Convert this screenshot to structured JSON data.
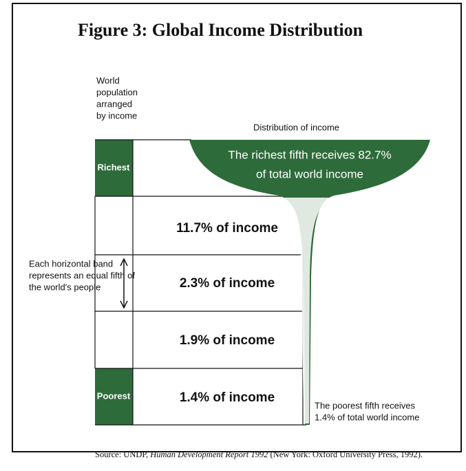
{
  "title": "Figure 3: Global Income Distribution",
  "population_label": [
    "World",
    "population",
    "arranged",
    "by income"
  ],
  "distribution_label": "Distribution of income",
  "bands": [
    {
      "label": "Richest",
      "income": [
        "The richest fifth receives 82.7%",
        "of total world income"
      ]
    },
    {
      "income": [
        "11.7% of income"
      ]
    },
    {
      "income": [
        "2.3% of income"
      ]
    },
    {
      "income": [
        "1.9% of income"
      ]
    },
    {
      "label": "Poorest",
      "income": [
        "1.4% of income"
      ]
    }
  ],
  "band_note": [
    "Each horizontal band",
    "represents an equal fifth of",
    "the world's people"
  ],
  "poorest_note": [
    "The poorest fifth receives",
    "1.4% of total world income"
  ],
  "source": {
    "prefix": "Source: UNDP,",
    "title": "Human Development Report 1992",
    "suffix": "(New York: Oxford University Press, 1992)."
  }
}
